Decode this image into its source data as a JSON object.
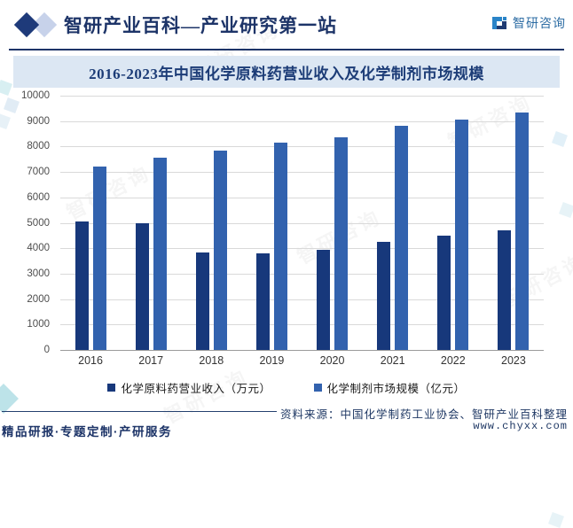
{
  "header": {
    "site_title": "智研产业百科—产业研究第一站",
    "logo_text": "智研咨询"
  },
  "chart": {
    "title": "2016-2023年中国化学原料药营业收入及化学制剂市场规模"
  },
  "chart_data": {
    "type": "bar",
    "title": "2016-2023年中国化学原料药营业收入及化学制剂市场规模",
    "categories": [
      "2016",
      "2017",
      "2018",
      "2019",
      "2020",
      "2021",
      "2022",
      "2023"
    ],
    "series": [
      {
        "name": "化学原料药营业收入（万元）",
        "color": "#17387b",
        "values": [
          5050,
          5000,
          3850,
          3800,
          3950,
          4250,
          4500,
          4700
        ]
      },
      {
        "name": "化学制剂市场规模（亿元）",
        "color": "#3262ae",
        "values": [
          7200,
          7550,
          7850,
          8150,
          8350,
          8800,
          9050,
          9350
        ]
      }
    ],
    "xlabel": "",
    "ylabel": "",
    "ylim": [
      0,
      10000
    ],
    "ytick_step": 1000,
    "yticks": [
      0,
      1000,
      2000,
      3000,
      4000,
      5000,
      6000,
      7000,
      8000,
      9000,
      10000
    ],
    "grid": true,
    "legend_position": "bottom"
  },
  "footer": {
    "source": "资料来源：中国化学制药工业协会、智研产业百科整理",
    "website": "www.chyxx.com",
    "services": "精品研报·专题定制·产研服务"
  },
  "watermark": {
    "text": "智研咨询"
  },
  "colors": {
    "navy": "#1d3468",
    "band_bg": "#dce7f3",
    "bar_dark": "#17387b",
    "bar_light": "#3262ae",
    "gridline": "#d9d9d9"
  }
}
